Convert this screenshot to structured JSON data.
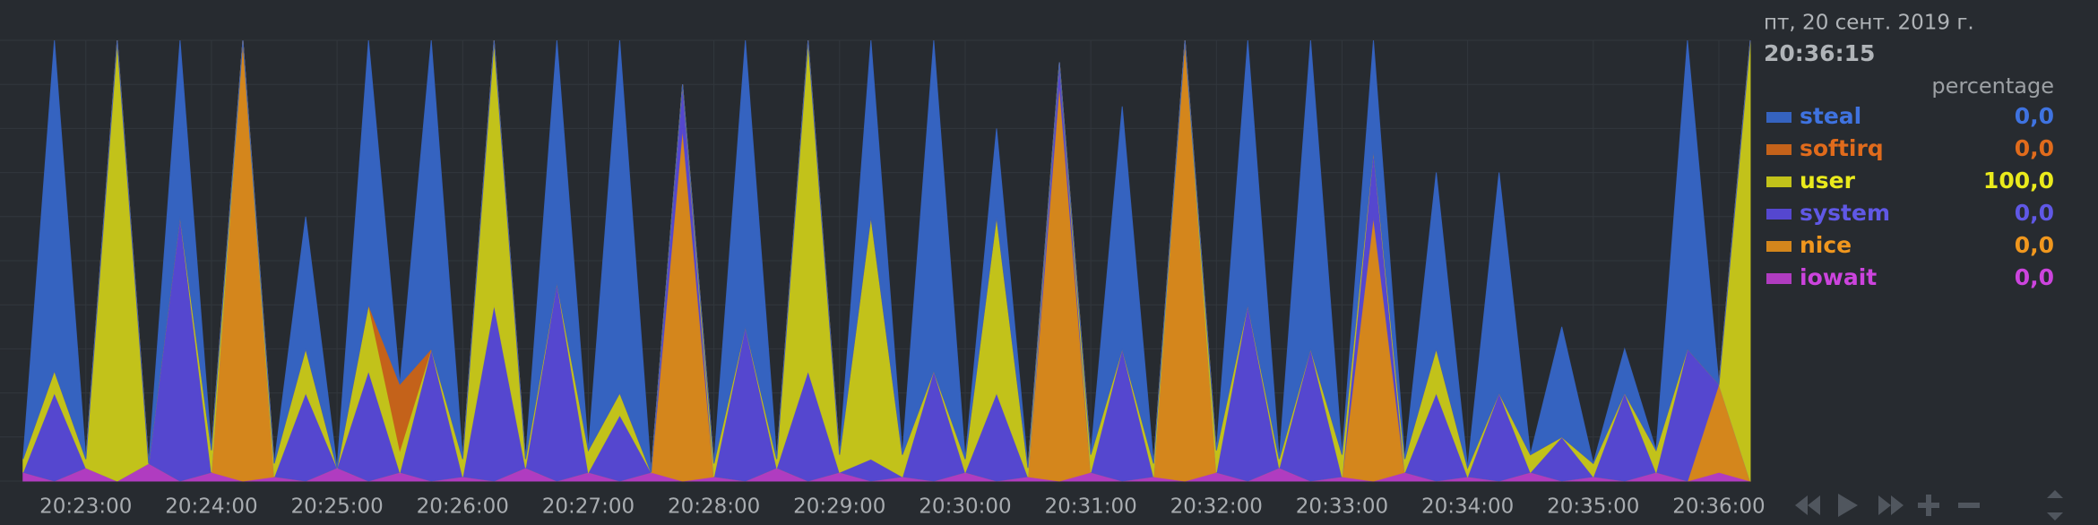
{
  "chart_data": {
    "type": "area",
    "stacked": true,
    "grid": true,
    "date_label": "пт, 20 сент. 2019 г.",
    "time_label": "20:36:15",
    "units": "percentage",
    "xlim": [
      "20:22:19",
      "20:36:15"
    ],
    "ylim": [
      0,
      100
    ],
    "xticks": [
      "20:23:00",
      "20:24:00",
      "20:25:00",
      "20:26:00",
      "20:27:00",
      "20:28:00",
      "20:29:00",
      "20:30:00",
      "20:31:00",
      "20:32:00",
      "20:33:00",
      "20:34:00",
      "20:35:00",
      "20:36:00"
    ],
    "x": [
      "20:22:30",
      "20:22:45",
      "20:23:00",
      "20:23:15",
      "20:23:30",
      "20:23:45",
      "20:24:00",
      "20:24:15",
      "20:24:30",
      "20:24:45",
      "20:25:00",
      "20:25:15",
      "20:25:30",
      "20:25:45",
      "20:26:00",
      "20:26:15",
      "20:26:30",
      "20:26:45",
      "20:27:00",
      "20:27:15",
      "20:27:30",
      "20:27:45",
      "20:28:00",
      "20:28:15",
      "20:28:30",
      "20:28:45",
      "20:29:00",
      "20:29:15",
      "20:29:30",
      "20:29:45",
      "20:30:00",
      "20:30:15",
      "20:30:30",
      "20:30:45",
      "20:31:00",
      "20:31:15",
      "20:31:30",
      "20:31:45",
      "20:32:00",
      "20:32:15",
      "20:32:30",
      "20:32:45",
      "20:33:00",
      "20:33:15",
      "20:33:30",
      "20:33:45",
      "20:34:00",
      "20:34:15",
      "20:34:30",
      "20:34:45",
      "20:35:00",
      "20:35:15",
      "20:35:30",
      "20:35:45",
      "20:36:00",
      "20:36:15"
    ],
    "series": [
      {
        "name": "steal",
        "color": "#3563c0",
        "text_color": "#3f73e0",
        "legend_value": 0,
        "legend_label": "0,0",
        "values": [
          0,
          75,
          0,
          0,
          0,
          40,
          0,
          0,
          0,
          30,
          0,
          60,
          0,
          70,
          0,
          0,
          0,
          55,
          0,
          80,
          0,
          0,
          0,
          65,
          0,
          0,
          0,
          40,
          0,
          75,
          0,
          20,
          0,
          0,
          0,
          55,
          0,
          0,
          0,
          60,
          0,
          70,
          0,
          25,
          0,
          40,
          0,
          50,
          0,
          25,
          0,
          10,
          0,
          70,
          0,
          0
        ]
      },
      {
        "name": "softirq",
        "color": "#c4621a",
        "text_color": "#e06b1c",
        "legend_value": 0,
        "legend_label": "0,0",
        "values": [
          0,
          0,
          0,
          0,
          0,
          0,
          0,
          0,
          0,
          0,
          0,
          0,
          15,
          0,
          0,
          0,
          0,
          0,
          0,
          0,
          0,
          0,
          0,
          0,
          0,
          0,
          0,
          0,
          0,
          0,
          0,
          0,
          0,
          0,
          0,
          0,
          0,
          0,
          0,
          0,
          0,
          0,
          0,
          0,
          0,
          0,
          0,
          0,
          0,
          0,
          0,
          0,
          0,
          0,
          0,
          0
        ]
      },
      {
        "name": "user",
        "color": "#c2c21a",
        "text_color": "#eaea1c",
        "legend_value": 100,
        "legend_label": "100,0",
        "values": [
          3,
          5,
          2,
          100,
          0,
          0,
          5,
          0,
          3,
          10,
          0,
          15,
          5,
          0,
          4,
          60,
          2,
          0,
          5,
          5,
          0,
          0,
          3,
          0,
          2,
          75,
          4,
          55,
          5,
          0,
          3,
          40,
          2,
          0,
          4,
          0,
          3,
          0,
          5,
          0,
          2,
          0,
          5,
          0,
          3,
          10,
          2,
          0,
          4,
          0,
          3,
          0,
          5,
          0,
          0,
          100
        ]
      },
      {
        "name": "system",
        "color": "#5547cf",
        "text_color": "#6058e6",
        "legend_value": 0,
        "legend_label": "0,0",
        "values": [
          0,
          20,
          0,
          0,
          0,
          60,
          0,
          0,
          0,
          20,
          0,
          25,
          0,
          30,
          0,
          40,
          0,
          45,
          0,
          15,
          0,
          10,
          0,
          35,
          0,
          25,
          0,
          5,
          0,
          25,
          0,
          20,
          0,
          5,
          0,
          30,
          0,
          0,
          0,
          40,
          0,
          30,
          0,
          15,
          0,
          20,
          0,
          20,
          0,
          10,
          0,
          20,
          0,
          30,
          0,
          0
        ]
      },
      {
        "name": "nice",
        "color": "#d4861c",
        "text_color": "#f0971e",
        "legend_value": 0,
        "legend_label": "0,0",
        "values": [
          0,
          0,
          0,
          0,
          0,
          0,
          0,
          100,
          0,
          0,
          0,
          0,
          0,
          0,
          0,
          0,
          0,
          0,
          0,
          0,
          0,
          80,
          0,
          0,
          0,
          0,
          0,
          0,
          0,
          0,
          0,
          0,
          0,
          90,
          0,
          0,
          0,
          100,
          0,
          0,
          0,
          0,
          0,
          60,
          0,
          0,
          0,
          0,
          0,
          0,
          0,
          0,
          0,
          0,
          20,
          0
        ]
      },
      {
        "name": "iowait",
        "color": "#b03cc0",
        "text_color": "#cc44dd",
        "legend_value": 0,
        "legend_label": "0,0",
        "values": [
          2,
          0,
          3,
          0,
          4,
          0,
          2,
          0,
          1,
          0,
          3,
          0,
          2,
          0,
          1,
          0,
          3,
          0,
          2,
          0,
          2,
          0,
          1,
          0,
          3,
          0,
          2,
          0,
          1,
          0,
          2,
          0,
          1,
          0,
          2,
          0,
          1,
          0,
          2,
          0,
          3,
          0,
          1,
          0,
          2,
          0,
          1,
          0,
          2,
          0,
          1,
          0,
          2,
          0,
          2,
          0
        ]
      }
    ]
  }
}
